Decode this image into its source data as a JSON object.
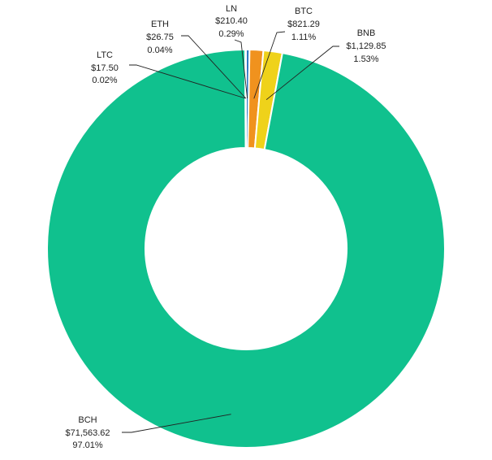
{
  "chart_data": {
    "type": "pie",
    "donut": true,
    "slices": [
      {
        "name": "LN",
        "value": 210.4,
        "value_label": "$210.40",
        "percent_label": "0.29%",
        "color": "#2f78c4"
      },
      {
        "name": "BTC",
        "value": 821.29,
        "value_label": "$821.29",
        "percent_label": "1.11%",
        "color": "#f0921e"
      },
      {
        "name": "BNB",
        "value": 1129.85,
        "value_label": "$1,129.85",
        "percent_label": "1.53%",
        "color": "#efd21a"
      },
      {
        "name": "BCH",
        "value": 71563.62,
        "value_label": "$71,563.62",
        "percent_label": "97.01%",
        "color": "#10c18e"
      },
      {
        "name": "LTC",
        "value": 17.5,
        "value_label": "$17.50",
        "percent_label": "0.02%",
        "color": "#a9a9a9"
      },
      {
        "name": "ETH",
        "value": 26.75,
        "value_label": "$26.75",
        "percent_label": "0.04%",
        "color": "#5a6f9c"
      }
    ],
    "legend": "none",
    "data_labels": "outside with leader lines"
  }
}
